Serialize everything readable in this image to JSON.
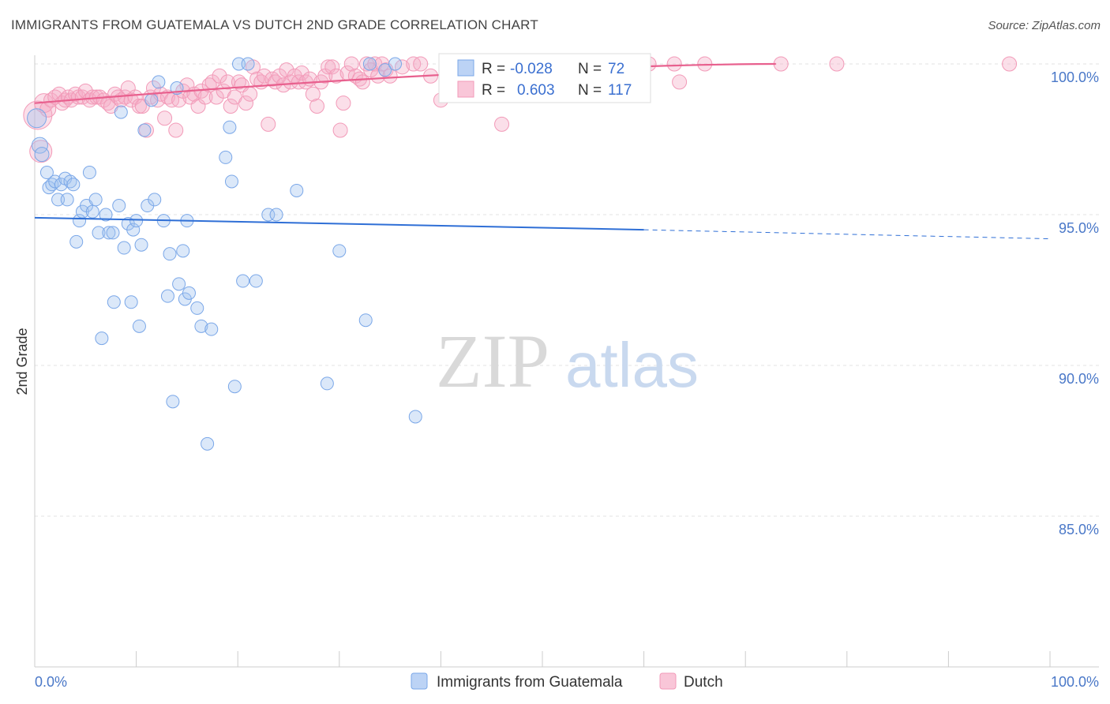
{
  "chart_data": {
    "type": "scatter",
    "title": "IMMIGRANTS FROM GUATEMALA VS DUTCH 2ND GRADE CORRELATION CHART",
    "source": "Source: ZipAtlas.com",
    "xlabel": "",
    "ylabel": "2nd Grade",
    "xlim": [
      0,
      100
    ],
    "ylim": [
      80.5,
      101
    ],
    "y_ticks": [
      {
        "value": 100,
        "label": "100.0%"
      },
      {
        "value": 95,
        "label": "95.0%"
      },
      {
        "value": 90,
        "label": "90.0%"
      },
      {
        "value": 85,
        "label": "85.0%"
      }
    ],
    "x_tick_labels": {
      "left": "0.0%",
      "right": "100.0%"
    },
    "x_minor_ticks": [
      0,
      10,
      20,
      30,
      40,
      50,
      60,
      70,
      80,
      90,
      100
    ],
    "watermark": {
      "part1": "ZIP",
      "part2": "atlas"
    },
    "legend": {
      "r_label": "R =",
      "n_label": "N =",
      "entries": [
        {
          "r": "-0.028",
          "n": "72"
        },
        {
          "r": "0.603",
          "n": "117"
        }
      ]
    },
    "series": [
      {
        "name": "Immigrants from Guatemala",
        "color": "#7aa7e8",
        "line_color": "#2f6fd6",
        "trend": {
          "x0": 0,
          "y0": 94.9,
          "x1": 60,
          "y1": 94.5,
          "x_dash_end": 100,
          "y_dash_end": 94.2
        },
        "points": [
          [
            0.2,
            98.2,
            12
          ],
          [
            0.5,
            97.3,
            10
          ],
          [
            0.7,
            97.0,
            9
          ],
          [
            1.2,
            96.4,
            8
          ],
          [
            1.4,
            95.9,
            8
          ],
          [
            1.7,
            96.0,
            8
          ],
          [
            2.0,
            96.1,
            8
          ],
          [
            2.3,
            95.5,
            8
          ],
          [
            2.6,
            96.0,
            8
          ],
          [
            3.0,
            96.2,
            8
          ],
          [
            3.2,
            95.5,
            8
          ],
          [
            3.5,
            96.1,
            8
          ],
          [
            3.8,
            96.0,
            8
          ],
          [
            4.1,
            94.1,
            8
          ],
          [
            4.4,
            94.8,
            8
          ],
          [
            4.7,
            95.1,
            8
          ],
          [
            5.1,
            95.3,
            8
          ],
          [
            5.4,
            96.4,
            8
          ],
          [
            5.7,
            95.1,
            8
          ],
          [
            6.0,
            95.5,
            8
          ],
          [
            6.3,
            94.4,
            8
          ],
          [
            6.6,
            90.9,
            8
          ],
          [
            7.0,
            95.0,
            8
          ],
          [
            7.3,
            94.4,
            8
          ],
          [
            7.7,
            94.4,
            8
          ],
          [
            7.8,
            92.1,
            8
          ],
          [
            8.3,
            95.3,
            8
          ],
          [
            8.5,
            98.4,
            8
          ],
          [
            8.8,
            93.9,
            8
          ],
          [
            9.2,
            94.7,
            8
          ],
          [
            9.5,
            92.1,
            8
          ],
          [
            9.7,
            94.5,
            8
          ],
          [
            10.0,
            94.8,
            8
          ],
          [
            10.3,
            91.3,
            8
          ],
          [
            10.5,
            94.0,
            8
          ],
          [
            10.8,
            97.8,
            8
          ],
          [
            11.1,
            95.3,
            8
          ],
          [
            11.5,
            98.8,
            8
          ],
          [
            11.8,
            95.5,
            8
          ],
          [
            12.2,
            99.4,
            8
          ],
          [
            12.7,
            94.8,
            8
          ],
          [
            13.1,
            92.3,
            8
          ],
          [
            13.3,
            93.7,
            8
          ],
          [
            13.6,
            88.8,
            8
          ],
          [
            14.0,
            99.2,
            8
          ],
          [
            14.2,
            92.7,
            8
          ],
          [
            14.6,
            93.8,
            8
          ],
          [
            14.8,
            92.2,
            8
          ],
          [
            15.0,
            94.8,
            8
          ],
          [
            15.2,
            92.4,
            8
          ],
          [
            16.0,
            91.9,
            8
          ],
          [
            16.4,
            91.3,
            8
          ],
          [
            17.0,
            87.4,
            8
          ],
          [
            17.4,
            91.2,
            8
          ],
          [
            18.8,
            96.9,
            8
          ],
          [
            19.2,
            97.9,
            8
          ],
          [
            19.4,
            96.1,
            8
          ],
          [
            19.7,
            89.3,
            8
          ],
          [
            20.1,
            100.0,
            8
          ],
          [
            20.5,
            92.8,
            8
          ],
          [
            21.0,
            100.0,
            8
          ],
          [
            21.8,
            92.8,
            8
          ],
          [
            23.0,
            95.0,
            8
          ],
          [
            23.8,
            95.0,
            8
          ],
          [
            25.8,
            95.8,
            8
          ],
          [
            28.8,
            89.4,
            8
          ],
          [
            30.0,
            93.8,
            8
          ],
          [
            32.6,
            91.5,
            8
          ],
          [
            33.0,
            100.0,
            8
          ],
          [
            34.5,
            99.8,
            8
          ],
          [
            35.5,
            100.0,
            8
          ],
          [
            37.5,
            88.3,
            8
          ]
        ]
      },
      {
        "name": "Dutch",
        "color": "#f29ab8",
        "line_color": "#e8608e",
        "trend": {
          "x0": 0,
          "y0": 98.7,
          "x1": 73,
          "y1": 100.0
        },
        "points": [
          [
            0.3,
            98.3,
            18
          ],
          [
            0.6,
            97.1,
            14
          ],
          [
            0.9,
            98.7,
            12
          ],
          [
            1.3,
            98.5,
            10
          ],
          [
            1.6,
            98.8,
            9
          ],
          [
            2.0,
            98.9,
            9
          ],
          [
            2.4,
            99.0,
            9
          ],
          [
            2.7,
            98.7,
            9
          ],
          [
            3.0,
            98.8,
            9
          ],
          [
            3.3,
            98.9,
            9
          ],
          [
            3.6,
            98.8,
            9
          ],
          [
            4.0,
            99.0,
            9
          ],
          [
            4.3,
            98.9,
            9
          ],
          [
            4.7,
            98.9,
            9
          ],
          [
            5.0,
            99.1,
            9
          ],
          [
            5.4,
            98.8,
            9
          ],
          [
            5.7,
            98.9,
            9
          ],
          [
            6.1,
            98.9,
            9
          ],
          [
            6.4,
            98.9,
            9
          ],
          [
            6.8,
            98.8,
            9
          ],
          [
            7.2,
            98.7,
            9
          ],
          [
            7.5,
            98.6,
            9
          ],
          [
            7.9,
            99.0,
            9
          ],
          [
            8.2,
            98.9,
            9
          ],
          [
            8.5,
            98.8,
            9
          ],
          [
            8.9,
            98.9,
            9
          ],
          [
            9.2,
            99.2,
            9
          ],
          [
            9.5,
            98.8,
            9
          ],
          [
            9.9,
            98.9,
            9
          ],
          [
            10.3,
            98.6,
            9
          ],
          [
            10.6,
            98.6,
            9
          ],
          [
            11.0,
            97.8,
            9
          ],
          [
            11.4,
            98.9,
            9
          ],
          [
            11.7,
            99.2,
            9
          ],
          [
            12.1,
            98.8,
            9
          ],
          [
            12.4,
            99.0,
            9
          ],
          [
            12.8,
            98.2,
            9
          ],
          [
            13.1,
            98.9,
            9
          ],
          [
            13.5,
            98.8,
            9
          ],
          [
            13.9,
            97.8,
            9
          ],
          [
            14.2,
            98.8,
            9
          ],
          [
            14.6,
            99.1,
            9
          ],
          [
            15.0,
            99.3,
            9
          ],
          [
            15.3,
            98.9,
            9
          ],
          [
            15.7,
            99.0,
            9
          ],
          [
            16.1,
            98.6,
            9
          ],
          [
            16.4,
            99.1,
            9
          ],
          [
            16.8,
            98.9,
            9
          ],
          [
            17.2,
            99.3,
            9
          ],
          [
            17.5,
            99.4,
            9
          ],
          [
            17.9,
            98.9,
            9
          ],
          [
            18.2,
            99.6,
            9
          ],
          [
            18.6,
            99.1,
            9
          ],
          [
            19.0,
            99.4,
            9
          ],
          [
            19.3,
            98.6,
            9
          ],
          [
            19.7,
            98.9,
            9
          ],
          [
            20.1,
            99.4,
            9
          ],
          [
            20.4,
            99.3,
            9
          ],
          [
            20.8,
            98.7,
            9
          ],
          [
            21.2,
            99.0,
            9
          ],
          [
            21.5,
            99.9,
            9
          ],
          [
            21.9,
            99.5,
            9
          ],
          [
            22.3,
            99.4,
            9
          ],
          [
            22.6,
            99.6,
            9
          ],
          [
            23.0,
            98.0,
            9
          ],
          [
            23.4,
            99.5,
            9
          ],
          [
            23.7,
            99.4,
            9
          ],
          [
            24.1,
            99.6,
            9
          ],
          [
            24.5,
            99.3,
            9
          ],
          [
            24.8,
            99.8,
            9
          ],
          [
            25.2,
            99.4,
            9
          ],
          [
            25.6,
            99.6,
            9
          ],
          [
            26.0,
            99.4,
            9
          ],
          [
            26.3,
            99.7,
            9
          ],
          [
            26.7,
            99.4,
            9
          ],
          [
            27.1,
            99.5,
            9
          ],
          [
            27.4,
            99.0,
            9
          ],
          [
            27.8,
            98.6,
            9
          ],
          [
            28.2,
            99.4,
            9
          ],
          [
            28.6,
            99.6,
            9
          ],
          [
            28.9,
            99.9,
            9
          ],
          [
            29.3,
            99.9,
            9
          ],
          [
            29.7,
            99.6,
            9
          ],
          [
            30.1,
            97.8,
            9
          ],
          [
            30.4,
            98.7,
            9
          ],
          [
            30.8,
            99.7,
            9
          ],
          [
            31.2,
            100.0,
            9
          ],
          [
            31.6,
            99.6,
            9
          ],
          [
            32.0,
            99.5,
            9
          ],
          [
            32.3,
            99.4,
            9
          ],
          [
            32.7,
            100.0,
            9
          ],
          [
            33.1,
            99.8,
            9
          ],
          [
            33.5,
            100.0,
            9
          ],
          [
            33.8,
            99.6,
            9
          ],
          [
            34.2,
            100.0,
            9
          ],
          [
            34.6,
            99.8,
            9
          ],
          [
            35.0,
            99.6,
            9
          ],
          [
            36.2,
            99.9,
            9
          ],
          [
            37.3,
            100.0,
            9
          ],
          [
            38.0,
            100.0,
            9
          ],
          [
            39.0,
            99.6,
            9
          ],
          [
            40.0,
            98.8,
            9
          ],
          [
            41.5,
            99.7,
            9
          ],
          [
            43.0,
            100.0,
            9
          ],
          [
            45.0,
            100.0,
            9
          ],
          [
            46.0,
            98.0,
            9
          ],
          [
            48.0,
            100.0,
            9
          ],
          [
            50.0,
            100.0,
            9
          ],
          [
            53.0,
            100.0,
            9
          ],
          [
            55.0,
            100.0,
            9
          ],
          [
            58.0,
            100.0,
            9
          ],
          [
            60.5,
            100.0,
            9
          ],
          [
            63.0,
            100.0,
            9
          ],
          [
            63.5,
            99.4,
            9
          ],
          [
            66.0,
            100.0,
            9
          ],
          [
            73.5,
            100.0,
            9
          ],
          [
            79.0,
            100.0,
            9
          ],
          [
            96.0,
            100.0,
            9
          ]
        ]
      }
    ]
  }
}
